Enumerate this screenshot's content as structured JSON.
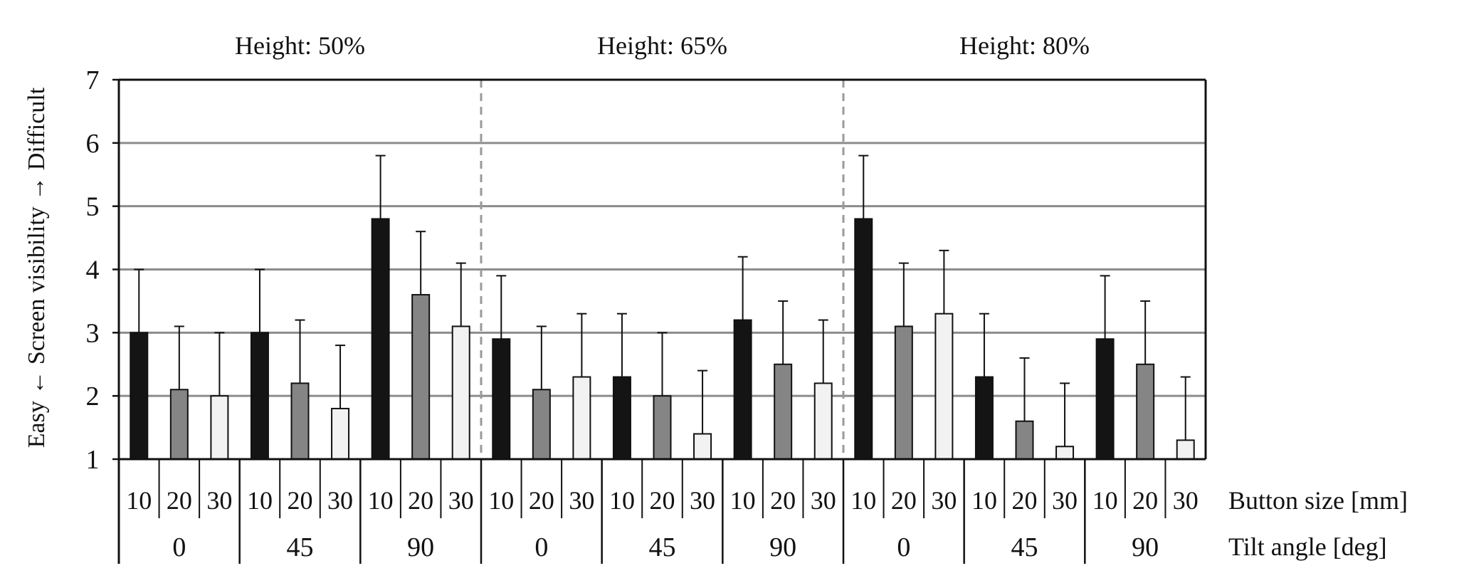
{
  "chart_data": {
    "type": "bar",
    "ylabel": "Easy ← Screen visibility → Difficult",
    "ylim": [
      1,
      7
    ],
    "yticks": [
      1,
      2,
      3,
      4,
      5,
      6,
      7
    ],
    "grid": true,
    "group_prefix": "Height:",
    "row_labels": {
      "button_size": "Button size [mm]",
      "tilt_angle": "Tilt angle [deg]"
    },
    "button_sizes": [
      "10",
      "20",
      "30"
    ],
    "colors": {
      "10": "#141414",
      "20": "#858585",
      "30": "#f2f2f2"
    },
    "panels": [
      {
        "title": "Height:  50%",
        "tilts": [
          {
            "tilt": "0",
            "values": [
              3.0,
              2.1,
              2.0
            ],
            "errors": [
              1.0,
              1.0,
              1.0
            ]
          },
          {
            "tilt": "45",
            "values": [
              3.0,
              2.2,
              1.8
            ],
            "errors": [
              1.0,
              1.0,
              1.0
            ]
          },
          {
            "tilt": "90",
            "values": [
              4.8,
              3.6,
              3.1
            ],
            "errors": [
              1.0,
              1.0,
              1.0
            ]
          }
        ]
      },
      {
        "title": "Height:  65%",
        "tilts": [
          {
            "tilt": "0",
            "values": [
              2.9,
              2.1,
              2.3
            ],
            "errors": [
              1.0,
              1.0,
              1.0
            ]
          },
          {
            "tilt": "45",
            "values": [
              2.3,
              2.0,
              1.4
            ],
            "errors": [
              1.0,
              1.0,
              1.0
            ]
          },
          {
            "tilt": "90",
            "values": [
              3.2,
              2.5,
              2.2
            ],
            "errors": [
              1.0,
              1.0,
              1.0
            ]
          }
        ]
      },
      {
        "title": "Height:  80%",
        "tilts": [
          {
            "tilt": "0",
            "values": [
              4.8,
              3.1,
              3.3
            ],
            "errors": [
              1.0,
              1.0,
              1.0
            ]
          },
          {
            "tilt": "45",
            "values": [
              2.3,
              1.6,
              1.2
            ],
            "errors": [
              1.0,
              1.0,
              1.0
            ]
          },
          {
            "tilt": "90",
            "values": [
              2.9,
              2.5,
              1.3
            ],
            "errors": [
              1.0,
              1.0,
              1.0
            ]
          }
        ]
      }
    ]
  }
}
